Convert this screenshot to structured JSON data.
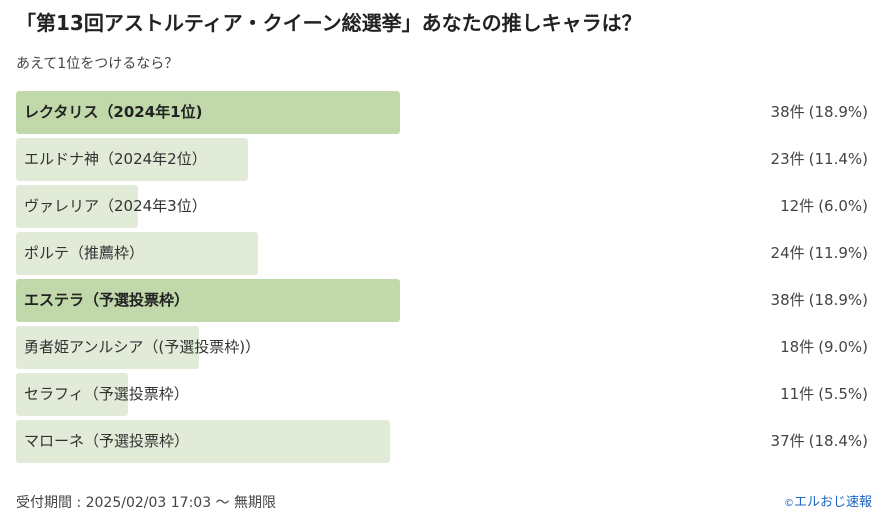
{
  "poll": {
    "title": "「第13回アストルティア・クイーン総選挙」あなたの推しキャラは？",
    "subtitle": "あえて1位をつけるなら？"
  },
  "colors": {
    "bar_top": "#c0d8aa",
    "bar_normal": "#e1ebd8",
    "link": "#1a66c2"
  },
  "options": [
    {
      "label": "レクタリス（2024年1位)",
      "votes": "38件",
      "percent": "(18.9%)",
      "share": 0.189,
      "top": true
    },
    {
      "label": "エルドナ神（2024年2位）",
      "votes": "23件",
      "percent": "(11.4%)",
      "share": 0.114,
      "top": false
    },
    {
      "label": "ヴァレリア（2024年3位）",
      "votes": "12件",
      "percent": "(6.0%)",
      "share": 0.06,
      "top": false
    },
    {
      "label": "ポルテ（推薦枠）",
      "votes": "24件",
      "percent": "(11.9%)",
      "share": 0.119,
      "top": false
    },
    {
      "label": "エステラ（予選投票枠）",
      "votes": "38件",
      "percent": "(18.9%)",
      "share": 0.189,
      "top": true
    },
    {
      "label": "勇者姫アンルシア（(予選投票枠)）",
      "votes": "18件",
      "percent": "(9.0%)",
      "share": 0.09,
      "top": false
    },
    {
      "label": "セラフィ（予選投票枠）",
      "votes": "11件",
      "percent": "(5.5%)",
      "share": 0.055,
      "top": false
    },
    {
      "label": "マローネ（予選投票枠）",
      "votes": "37件",
      "percent": "(18.4%)",
      "share": 0.184,
      "top": false
    }
  ],
  "footer": {
    "period": "受付期間 : 2025/02/03 17:03 〜 無期限",
    "copyright_symbol": "©",
    "credit": "エルおじ速報"
  }
}
